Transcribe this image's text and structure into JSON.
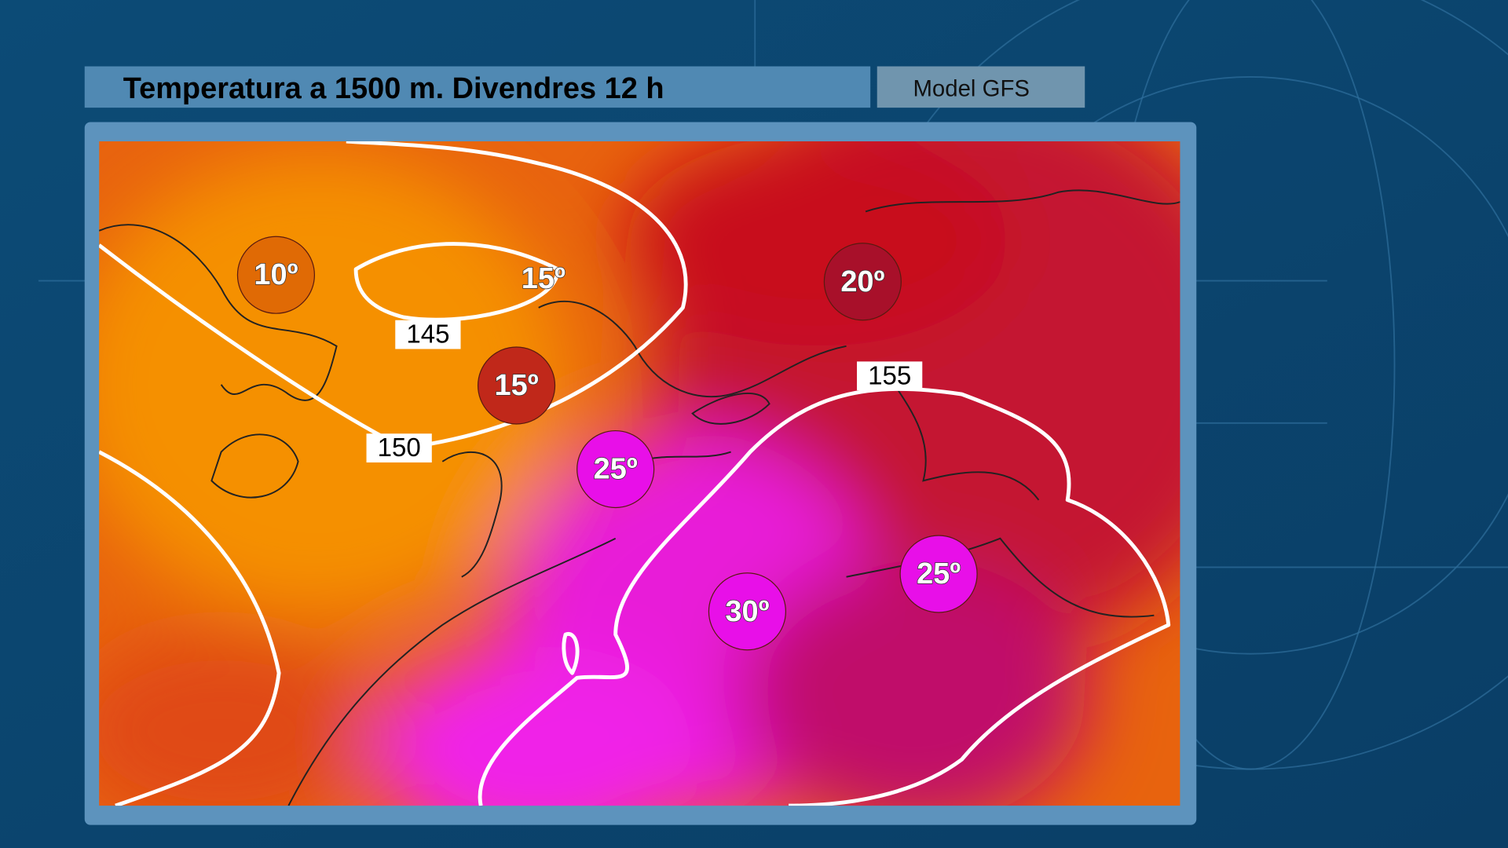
{
  "header": {
    "title": "Temperatura a 1500 m.  Divendres 12 h",
    "model": "Model GFS"
  },
  "map": {
    "markers": [
      {
        "label": "10º"
      },
      {
        "label": "15º"
      },
      {
        "label": "20º"
      },
      {
        "label": "25º"
      },
      {
        "label": "30º"
      },
      {
        "label": "25º"
      }
    ],
    "annotations": [
      {
        "label": "15º"
      }
    ],
    "contour_labels": [
      {
        "label": "145"
      },
      {
        "label": "150"
      },
      {
        "label": "155"
      }
    ]
  }
}
